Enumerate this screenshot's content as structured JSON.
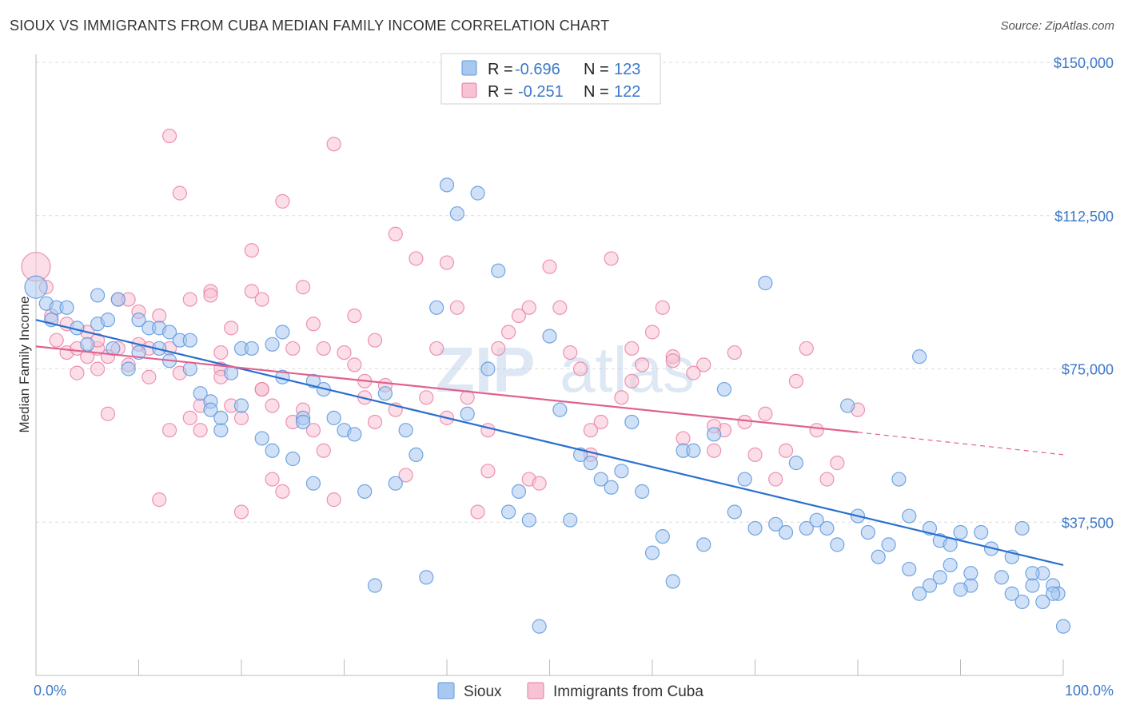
{
  "title": "SIOUX VS IMMIGRANTS FROM CUBA MEDIAN FAMILY INCOME CORRELATION CHART",
  "source": "Source: ZipAtlas.com",
  "watermark": {
    "bold": "ZIP",
    "light": "atlas"
  },
  "legend_top": [
    {
      "r_label": "R =",
      "r_value": "-0.696",
      "n_label": "N =",
      "n_value": "123",
      "color": "#7fb0ea"
    },
    {
      "r_label": "R =",
      "r_value": "-0.251",
      "n_label": "N =",
      "n_value": "122",
      "color": "#f4a6c0"
    }
  ],
  "legend_bottom": [
    "Sioux",
    "Immigrants from Cuba"
  ],
  "colors": {
    "sioux": "#5b97de",
    "sioux_fill": "#a9c8f0",
    "cuba": "#e87aa0",
    "cuba_fill": "#f7c3d4",
    "sioux_line": "#2a6fcf",
    "cuba_line": "#e0628e",
    "tick": "#3b78c9"
  },
  "chart_data": {
    "type": "scatter",
    "xlabel": "",
    "ylabel": "Median Family Income",
    "xlim": [
      0,
      100
    ],
    "ylim": [
      0,
      150000
    ],
    "x_tick_labels": [
      "0.0%",
      "100.0%"
    ],
    "y_ticks": [
      37500,
      75000,
      112500,
      150000
    ],
    "y_tick_labels": [
      "$37,500",
      "$75,000",
      "$112,500",
      "$150,000"
    ],
    "grid": "horizontal dashed",
    "legend": "top-center",
    "series": [
      {
        "name": "Sioux",
        "R": -0.696,
        "N": 123,
        "trend": {
          "x": [
            0,
            100
          ],
          "y": [
            87000,
            27000
          ]
        },
        "points": [
          [
            0,
            95
          ],
          [
            1,
            91
          ],
          [
            2,
            90
          ],
          [
            1.5,
            87
          ],
          [
            3,
            90
          ],
          [
            4,
            85
          ],
          [
            5,
            81
          ],
          [
            6,
            93
          ],
          [
            6,
            86
          ],
          [
            7,
            87
          ],
          [
            8,
            92
          ],
          [
            7.5,
            80
          ],
          [
            9,
            75
          ],
          [
            10,
            87
          ],
          [
            10,
            79
          ],
          [
            11,
            85
          ],
          [
            12,
            85
          ],
          [
            12,
            80
          ],
          [
            13,
            84
          ],
          [
            13,
            77
          ],
          [
            14,
            82
          ],
          [
            15,
            82
          ],
          [
            15,
            75
          ],
          [
            16,
            69
          ],
          [
            17,
            67
          ],
          [
            17,
            65
          ],
          [
            18,
            60
          ],
          [
            18,
            63
          ],
          [
            19,
            74
          ],
          [
            20,
            66
          ],
          [
            20,
            80
          ],
          [
            21,
            80
          ],
          [
            22,
            58
          ],
          [
            23,
            55
          ],
          [
            23,
            81
          ],
          [
            24,
            84
          ],
          [
            24,
            73
          ],
          [
            25,
            53
          ],
          [
            26,
            63
          ],
          [
            26,
            62
          ],
          [
            27,
            47
          ],
          [
            28,
            70
          ],
          [
            27,
            72
          ],
          [
            29,
            63
          ],
          [
            30,
            60
          ],
          [
            31,
            59
          ],
          [
            32,
            45
          ],
          [
            33,
            22
          ],
          [
            34,
            69
          ],
          [
            35,
            47
          ],
          [
            36,
            60
          ],
          [
            37,
            54
          ],
          [
            38,
            24
          ],
          [
            39,
            90
          ],
          [
            40,
            120
          ],
          [
            41,
            113
          ],
          [
            42,
            64
          ],
          [
            43,
            118
          ],
          [
            44,
            75
          ],
          [
            45,
            99
          ],
          [
            46,
            40
          ],
          [
            47,
            45
          ],
          [
            48,
            38
          ],
          [
            49,
            12
          ],
          [
            50,
            83
          ],
          [
            51,
            65
          ],
          [
            52,
            38
          ],
          [
            53,
            54
          ],
          [
            54,
            52
          ],
          [
            55,
            48
          ],
          [
            56,
            46
          ],
          [
            57,
            50
          ],
          [
            58,
            62
          ],
          [
            59,
            45
          ],
          [
            60,
            30
          ],
          [
            61,
            34
          ],
          [
            62,
            23
          ],
          [
            63,
            55
          ],
          [
            64,
            55
          ],
          [
            65,
            32
          ],
          [
            66,
            59
          ],
          [
            67,
            70
          ],
          [
            68,
            40
          ],
          [
            69,
            48
          ],
          [
            70,
            36
          ],
          [
            71,
            96
          ],
          [
            72,
            37
          ],
          [
            73,
            35
          ],
          [
            74,
            52
          ],
          [
            75,
            36
          ],
          [
            76,
            38
          ],
          [
            77,
            36
          ],
          [
            78,
            32
          ],
          [
            79,
            66
          ],
          [
            80,
            39
          ],
          [
            81,
            35
          ],
          [
            82,
            29
          ],
          [
            83,
            32
          ],
          [
            84,
            48
          ],
          [
            85,
            39
          ],
          [
            86,
            78
          ],
          [
            87,
            36
          ],
          [
            88,
            33
          ],
          [
            89,
            32
          ],
          [
            90,
            35
          ],
          [
            91,
            22
          ],
          [
            92,
            35
          ],
          [
            93,
            31
          ],
          [
            94,
            24
          ],
          [
            95,
            29
          ],
          [
            96,
            36
          ],
          [
            97,
            22
          ],
          [
            98,
            25
          ],
          [
            99,
            22
          ],
          [
            99.5,
            20
          ],
          [
            100,
            12
          ],
          [
            99,
            20
          ],
          [
            98,
            18
          ],
          [
            97,
            25
          ],
          [
            96,
            18
          ],
          [
            95,
            20
          ],
          [
            91,
            25
          ],
          [
            90,
            21
          ],
          [
            89,
            27
          ],
          [
            88,
            24
          ],
          [
            87,
            22
          ],
          [
            86,
            20
          ],
          [
            85,
            26
          ]
        ]
      },
      {
        "name": "Immigrants from Cuba",
        "R": -0.251,
        "N": 122,
        "trend": {
          "x": [
            0,
            80
          ],
          "y": [
            80500,
            59500
          ]
        },
        "trend_dashed": {
          "x": [
            80,
            100
          ],
          "y": [
            59500,
            54000
          ]
        },
        "points": [
          [
            0,
            100
          ],
          [
            1,
            95
          ],
          [
            1.5,
            88
          ],
          [
            2,
            82
          ],
          [
            3,
            86
          ],
          [
            3,
            79
          ],
          [
            4,
            80
          ],
          [
            4,
            74
          ],
          [
            5,
            78
          ],
          [
            5,
            84
          ],
          [
            6,
            80
          ],
          [
            6,
            75
          ],
          [
            7,
            64
          ],
          [
            7,
            78
          ],
          [
            8,
            92
          ],
          [
            8,
            80
          ],
          [
            9,
            76
          ],
          [
            10,
            89
          ],
          [
            10,
            81
          ],
          [
            11,
            73
          ],
          [
            11,
            80
          ],
          [
            12,
            88
          ],
          [
            12,
            43
          ],
          [
            13,
            60
          ],
          [
            13,
            80
          ],
          [
            14,
            118
          ],
          [
            14,
            74
          ],
          [
            15,
            92
          ],
          [
            15,
            63
          ],
          [
            16,
            60
          ],
          [
            16,
            66
          ],
          [
            17,
            94
          ],
          [
            17,
            93
          ],
          [
            18,
            75
          ],
          [
            18,
            73
          ],
          [
            19,
            66
          ],
          [
            19,
            85
          ],
          [
            20,
            63
          ],
          [
            20,
            40
          ],
          [
            21,
            94
          ],
          [
            21,
            104
          ],
          [
            22,
            92
          ],
          [
            22,
            70
          ],
          [
            23,
            48
          ],
          [
            23,
            66
          ],
          [
            24,
            116
          ],
          [
            24,
            45
          ],
          [
            25,
            80
          ],
          [
            25,
            62
          ],
          [
            26,
            95
          ],
          [
            26,
            65
          ],
          [
            27,
            60
          ],
          [
            28,
            80
          ],
          [
            28,
            55
          ],
          [
            29,
            130
          ],
          [
            29,
            43
          ],
          [
            30,
            79
          ],
          [
            31,
            76
          ],
          [
            32,
            72
          ],
          [
            32,
            68
          ],
          [
            33,
            82
          ],
          [
            33,
            62
          ],
          [
            34,
            71
          ],
          [
            35,
            108
          ],
          [
            36,
            49
          ],
          [
            37,
            102
          ],
          [
            38,
            68
          ],
          [
            39,
            80
          ],
          [
            40,
            63
          ],
          [
            40,
            101
          ],
          [
            41,
            90
          ],
          [
            42,
            68
          ],
          [
            43,
            40
          ],
          [
            44,
            60
          ],
          [
            45,
            80
          ],
          [
            46,
            84
          ],
          [
            47,
            88
          ],
          [
            48,
            48
          ],
          [
            49,
            47
          ],
          [
            50,
            100
          ],
          [
            51,
            90
          ],
          [
            52,
            79
          ],
          [
            53,
            75
          ],
          [
            54,
            60
          ],
          [
            55,
            62
          ],
          [
            56,
            102
          ],
          [
            57,
            68
          ],
          [
            58,
            72
          ],
          [
            59,
            76
          ],
          [
            60,
            84
          ],
          [
            61,
            90
          ],
          [
            62,
            78
          ],
          [
            63,
            58
          ],
          [
            64,
            74
          ],
          [
            65,
            76
          ],
          [
            66,
            55
          ],
          [
            67,
            60
          ],
          [
            68,
            79
          ],
          [
            69,
            62
          ],
          [
            70,
            54
          ],
          [
            71,
            64
          ],
          [
            72,
            48
          ],
          [
            73,
            55
          ],
          [
            74,
            72
          ],
          [
            75,
            80
          ],
          [
            76,
            60
          ],
          [
            77,
            48
          ],
          [
            78,
            52
          ],
          [
            80,
            65
          ],
          [
            6,
            82
          ],
          [
            9,
            92
          ],
          [
            13,
            132
          ],
          [
            18,
            79
          ],
          [
            22,
            70
          ],
          [
            27,
            86
          ],
          [
            31,
            88
          ],
          [
            35,
            65
          ],
          [
            44,
            50
          ],
          [
            48,
            90
          ],
          [
            54,
            54
          ],
          [
            58,
            80
          ],
          [
            62,
            77
          ],
          [
            66,
            61
          ]
        ]
      }
    ]
  }
}
